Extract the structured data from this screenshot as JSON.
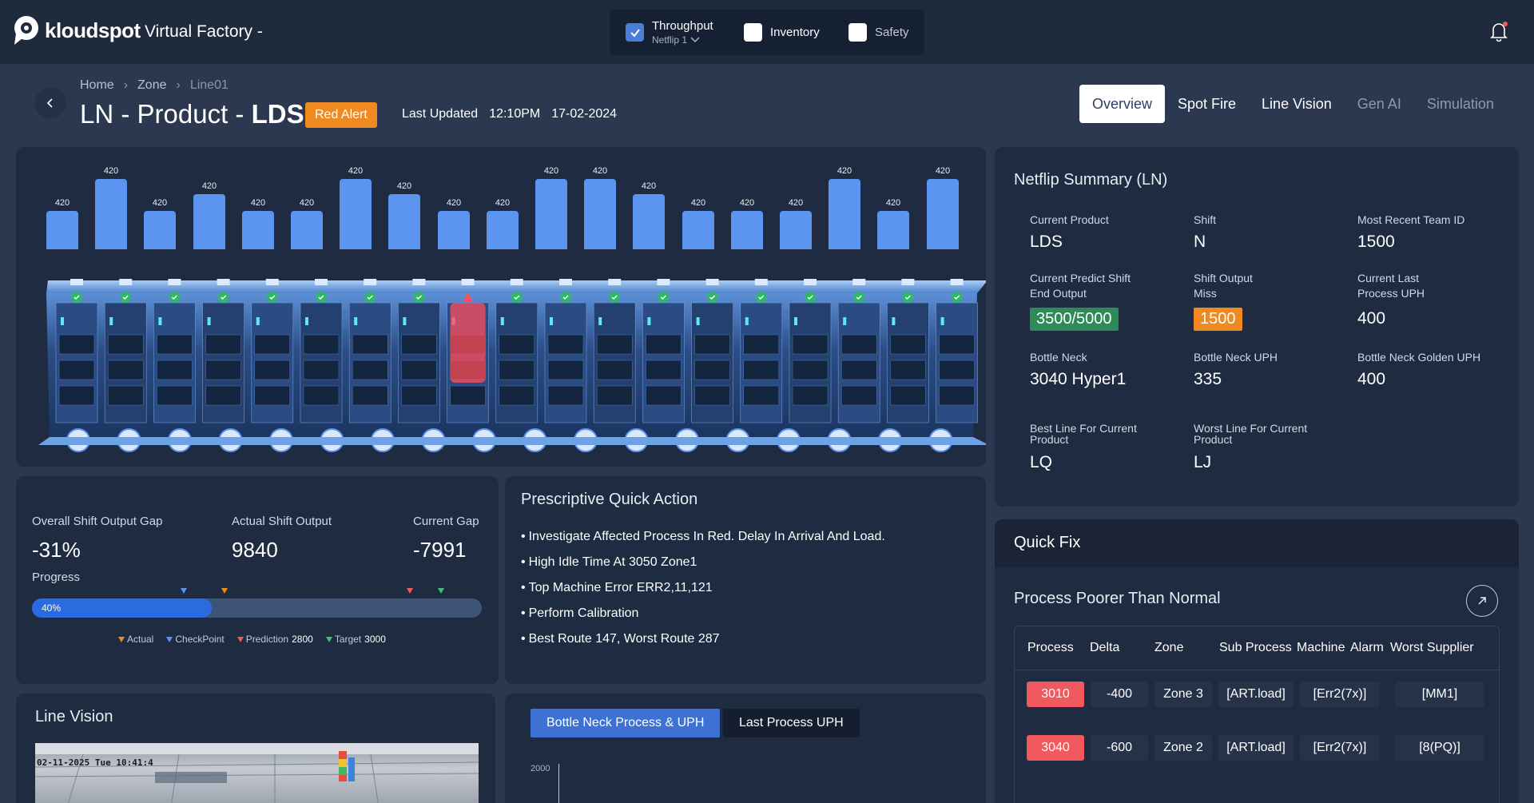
{
  "brand": {
    "logo_text": "kloudspot",
    "app_title": "Virtual Factory -"
  },
  "top_toggles": [
    {
      "label": "Throughput",
      "sub": "Netflip 1",
      "checked": true
    },
    {
      "label": "Inventory",
      "checked": false
    },
    {
      "label": "Safety",
      "checked": false
    }
  ],
  "breadcrumb": [
    "Home",
    "Zone",
    "Line01"
  ],
  "page": {
    "title_prefix": "LN - Product - ",
    "title_bold": "LDS",
    "alert": "Red Alert",
    "last_updated_label": "Last Updated",
    "last_updated_time": "12:10PM",
    "last_updated_date": "17-02-2024"
  },
  "tabs": [
    "Overview",
    "Spot Fire",
    "Line Vision",
    "Gen AI",
    "Simulation"
  ],
  "station_bars": {
    "values": [
      420,
      420,
      420,
      420,
      420,
      420,
      420,
      420,
      420,
      420,
      420,
      420,
      420,
      420,
      420,
      420,
      420,
      420,
      420
    ],
    "labels": [
      "420",
      "420",
      "420",
      "420",
      "420",
      "420",
      "420",
      "420",
      "420",
      "420",
      "420",
      "420",
      "420",
      "420",
      "420",
      "420",
      "420",
      "420",
      "420"
    ],
    "relative_heights": [
      0.55,
      1.0,
      0.55,
      0.78,
      0.55,
      0.55,
      1.0,
      0.78,
      0.55,
      0.55,
      1.0,
      1.0,
      0.78,
      0.55,
      0.55,
      0.55,
      1.0,
      0.55,
      1.0
    ],
    "alert_station_index": 8,
    "color": "#5b95f0"
  },
  "summary": {
    "title": "Netflip Summary (LN)",
    "fields": {
      "current_product": {
        "label": "Current Product",
        "value": "LDS"
      },
      "shift": {
        "label": "Shift",
        "value": "N"
      },
      "team_id": {
        "label": "Most Recent Team ID",
        "value": "1500"
      },
      "predict_output": {
        "label_1": "Current Predict Shift",
        "label_2": "End Output",
        "value": "3500/5000"
      },
      "output_miss": {
        "label_1": "Shift Output",
        "label_2": "Miss",
        "value": "1500"
      },
      "last_uph": {
        "label_1": "Current Last",
        "label_2": "Process UPH",
        "value": "400"
      },
      "bottle_neck": {
        "label": "Bottle Neck",
        "value": "3040 Hyper1"
      },
      "bottle_neck_uph": {
        "label": "Bottle Neck UPH",
        "value": "335"
      },
      "golden_uph": {
        "label": "Bottle Neck Golden UPH",
        "value": "400"
      },
      "best_line": {
        "label_1": "Best Line For Current",
        "label_2": "Product",
        "value": "LQ"
      },
      "worst_line": {
        "label_1": "Worst Line For Current",
        "label_2": "Product",
        "value": "LJ"
      }
    }
  },
  "shift_output": {
    "gap_label": "Overall Shift Output Gap",
    "gap_value": "-31%",
    "actual_label": "Actual Shift Output",
    "actual_value": "9840",
    "current_gap_label": "Current Gap",
    "current_gap_value": "-7991",
    "progress_label": "Progress",
    "progress_percent": 40,
    "progress_text": "40%",
    "legend": {
      "actual": "Actual",
      "checkpoint": "CheckPoint",
      "prediction": "Prediction",
      "prediction_value": "2800",
      "target": "Target",
      "target_value": "3000"
    },
    "colors": {
      "actual": "#ef8a22",
      "checkpoint": "#5b95f0",
      "prediction": "#f05a5f",
      "target": "#3fc07a"
    }
  },
  "prescriptive": {
    "title": "Prescriptive Quick Action",
    "items": [
      "Investigate Affected Process In Red. Delay In Arrival And Load.",
      "High Idle Time At 3050 Zone1",
      "Top Machine Error ERR2,11,121",
      "Perform Calibration",
      "Best Route 147, Worst Route 287"
    ]
  },
  "line_vision": {
    "title": "Line Vision",
    "timestamp": "02-11-2025 Tue 10:41:4"
  },
  "bottleneck_chart": {
    "tab_active": "Bottle Neck Process & UPH",
    "tab_inactive": "Last Process UPH",
    "y_tick": "2000"
  },
  "quick_fix": {
    "title": "Quick Fix",
    "subtitle": "Process Poorer Than Normal",
    "columns": [
      "Process",
      "Delta",
      "Zone",
      "Sub Process",
      "Machine",
      "Alarm",
      "Worst Supplier"
    ],
    "rows": [
      {
        "process": "3010",
        "delta": "-400",
        "zone": "Zone 3",
        "sub": "[ART.load]",
        "alarm": "[Err2(7x)]",
        "supplier": "[MM1]"
      },
      {
        "process": "3040",
        "delta": "-600",
        "zone": "Zone 2",
        "sub": "[ART.load]",
        "alarm": "[Err2(7x)]",
        "supplier": "[8(PQ)]"
      }
    ]
  }
}
